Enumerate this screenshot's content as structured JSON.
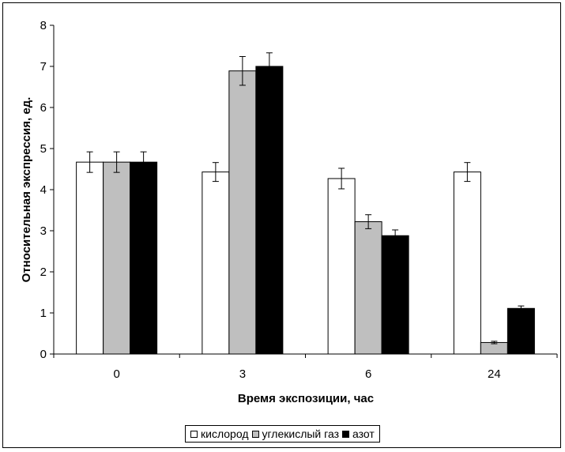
{
  "chart_data": {
    "type": "bar",
    "title": "",
    "xlabel": "Время экспозиции, час",
    "ylabel": "Относительная экспрессия, ед.",
    "categories": [
      "0",
      "3",
      "6",
      "24"
    ],
    "ylim": [
      0,
      8
    ],
    "yticks": [
      "0",
      "1",
      "2",
      "3",
      "4",
      "5",
      "6",
      "7",
      "8"
    ],
    "grid": false,
    "legend_position": "bottom",
    "series": [
      {
        "name": "кислород",
        "color": "#ffffff",
        "values": [
          4.67,
          4.43,
          4.27,
          4.43
        ],
        "errors": [
          0.25,
          0.23,
          0.25,
          0.23
        ]
      },
      {
        "name": "углекислый газ",
        "color": "#bfbfbf",
        "values": [
          4.67,
          6.89,
          3.22,
          0.28
        ],
        "errors": [
          0.25,
          0.35,
          0.17,
          0.03
        ]
      },
      {
        "name": "азот",
        "color": "#000000",
        "values": [
          4.67,
          7.0,
          2.88,
          1.11
        ],
        "errors": [
          0.25,
          0.33,
          0.14,
          0.06
        ]
      }
    ]
  }
}
